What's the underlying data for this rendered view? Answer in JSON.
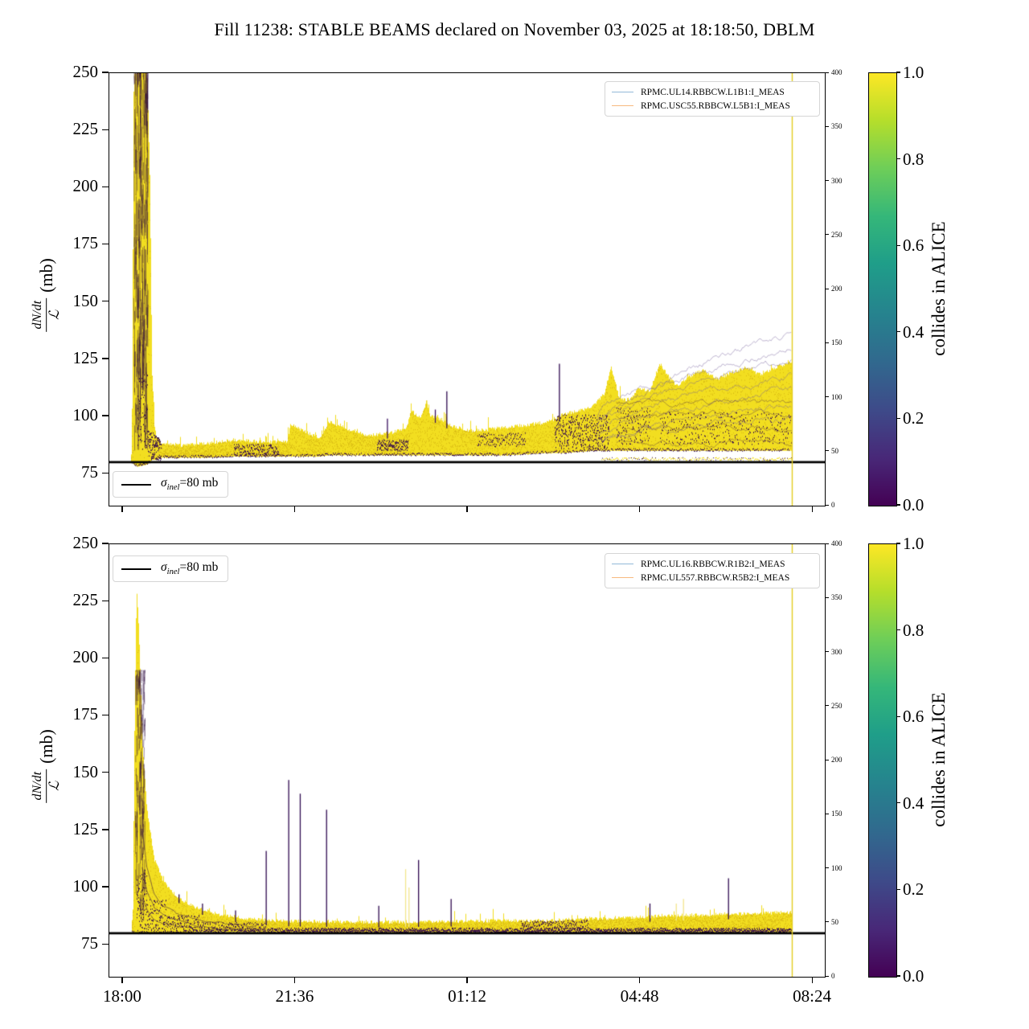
{
  "title": "Fill 11238: STABLE BEAMS declared on November 03, 2025 at 18:18:50, DBLM",
  "colors": {
    "yellow": "#f2de20",
    "yellow_dark": "#d8b914",
    "dark": "#33094f",
    "pale_purple": "rgba(112,92,152,0.5)",
    "vline": "#e3cc20",
    "sigma_line": "#000000"
  },
  "chart_data": [
    {
      "type": "scatter-density",
      "panel": "top",
      "legend": [
        {
          "label": "RPMC.UL14.RBBCW.L1B1:I_MEAS",
          "color": "#92b9d8"
        },
        {
          "label": "RPMC.USC55.RBBCW.L5B1:I_MEAS",
          "color": "#f7b97f"
        }
      ],
      "sigma": {
        "sym": "σ",
        "sub": "inel",
        "rest": "=80 mb",
        "value": 80,
        "plain": "σ_inel=80 mb"
      },
      "ylabel": {
        "num": "dN/dt",
        "den": "ℒ",
        "unit": "(mb)"
      },
      "ylim": [
        61,
        250
      ],
      "yticks": [
        75,
        100,
        125,
        150,
        175,
        200,
        225,
        250
      ],
      "xlim_hours": [
        -0.285,
        14.65
      ],
      "xticks": {
        "hours": [
          0,
          3.6,
          7.2,
          10.8,
          14.4
        ],
        "labels": [
          "18:00",
          "21:36",
          "01:12",
          "04:48",
          "08:24"
        ],
        "labels_visible": false
      },
      "right_axis": {
        "lim": [
          0,
          400
        ],
        "ticks": [
          0,
          50,
          100,
          150,
          200,
          250,
          300,
          350,
          400
        ]
      },
      "colorbar": {
        "label": "collides in ALICE",
        "ticks": [
          "1.0",
          "0.8",
          "0.6",
          "0.4",
          "0.2",
          "0.0"
        ],
        "cmap": "viridis",
        "lim": [
          0,
          1
        ]
      },
      "vline_hour": 13.97,
      "seed": 42,
      "band": [
        [
          0.18,
          80,
          83
        ],
        [
          0.22,
          79,
          249
        ],
        [
          0.3,
          78,
          251
        ],
        [
          0.5,
          79,
          251
        ],
        [
          0.56,
          80,
          200
        ],
        [
          0.6,
          81,
          120
        ],
        [
          0.66,
          81,
          92
        ],
        [
          0.8,
          82,
          88
        ],
        [
          1.2,
          82,
          87
        ],
        [
          1.8,
          82,
          88
        ],
        [
          2.3,
          82.5,
          89.5
        ],
        [
          3.0,
          82.5,
          88.5
        ],
        [
          3.42,
          82.5,
          89
        ],
        [
          3.5,
          82.5,
          96.5
        ],
        [
          3.8,
          82.5,
          93
        ],
        [
          4.1,
          82.5,
          90
        ],
        [
          4.3,
          83,
          97.5
        ],
        [
          4.7,
          83,
          94
        ],
        [
          5.1,
          83,
          91.5
        ],
        [
          5.6,
          83,
          92.5
        ],
        [
          5.92,
          83,
          95
        ],
        [
          6.0,
          83,
          102.5
        ],
        [
          6.2,
          83,
          99
        ],
        [
          6.33,
          83,
          106
        ],
        [
          6.4,
          83,
          100
        ],
        [
          6.7,
          83,
          98
        ],
        [
          6.8,
          83,
          96
        ],
        [
          7.2,
          83,
          93.5
        ],
        [
          7.6,
          83,
          94
        ],
        [
          8.0,
          83,
          95
        ],
        [
          8.4,
          83.5,
          96
        ],
        [
          8.8,
          84,
          97
        ],
        [
          9.05,
          84,
          99
        ],
        [
          9.2,
          84,
          101
        ],
        [
          9.5,
          84.5,
          102
        ],
        [
          9.8,
          85,
          104
        ],
        [
          10.05,
          85,
          110
        ],
        [
          10.18,
          85,
          122
        ],
        [
          10.35,
          85,
          108
        ],
        [
          10.55,
          85,
          106
        ],
        [
          10.75,
          85,
          112
        ],
        [
          11.0,
          85,
          111
        ],
        [
          11.2,
          85,
          123
        ],
        [
          11.35,
          85,
          118
        ],
        [
          11.55,
          85,
          113
        ],
        [
          11.8,
          85,
          117
        ],
        [
          12.1,
          85,
          120
        ],
        [
          12.4,
          85,
          116
        ],
        [
          12.7,
          85,
          119
        ],
        [
          13.0,
          85,
          121
        ],
        [
          13.3,
          85,
          118
        ],
        [
          13.6,
          85,
          121
        ],
        [
          13.97,
          85,
          124
        ]
      ],
      "dark_regions": [
        [
          0.3,
          0.52,
          84,
          120,
          6
        ],
        [
          0.52,
          0.8,
          81,
          94,
          8
        ],
        [
          2.3,
          3.25,
          83,
          88,
          3
        ],
        [
          5.3,
          5.95,
          85,
          90,
          4
        ],
        [
          7.4,
          8.4,
          87,
          93,
          2
        ],
        [
          9.0,
          10.15,
          86,
          101,
          6
        ],
        [
          10.3,
          11.0,
          88,
          104,
          3
        ],
        [
          11.2,
          13.97,
          88,
          102,
          2
        ]
      ],
      "streaks": {
        "t": [
          0.23,
          0.52
        ],
        "y": [
          85,
          250
        ],
        "n": 260,
        "len": [
          3,
          22
        ],
        "color": "rgba(40,5,60,0.45)"
      },
      "spikes": [
        [
          5.52,
          99,
          "#3a1060"
        ],
        [
          6.34,
          107,
          "#e8d41f"
        ],
        [
          6.52,
          103,
          "#3a1060"
        ],
        [
          6.76,
          111,
          "#2f0a50"
        ],
        [
          9.11,
          123,
          "#2f0a50"
        ]
      ],
      "fan": {
        "t": [
          9.9,
          13.97
        ],
        "n": 7,
        "y_start": [
          88,
          100
        ],
        "y_end": [
          100,
          137
        ],
        "wiggle": 2.0,
        "color": "rgba(112,92,152,0.5)"
      },
      "inner_ridges": {
        "t": [
          10.3,
          13.97
        ],
        "n": 4,
        "y": [
          88,
          106
        ],
        "wiggle": 1.6,
        "color": "rgba(55,18,75,0.42)"
      },
      "underband": {
        "t": [
          10.0,
          13.97
        ],
        "y": [
          80.8,
          82.2
        ]
      }
    },
    {
      "type": "scatter-density",
      "panel": "bottom",
      "legend": [
        {
          "label": "RPMC.UL16.RBBCW.R1B2:I_MEAS",
          "color": "#92b9d8"
        },
        {
          "label": "RPMC.UL557.RBBCW.R5B2:I_MEAS",
          "color": "#f7b97f"
        }
      ],
      "sigma": {
        "sym": "σ",
        "sub": "inel",
        "rest": "=80 mb",
        "value": 80,
        "plain": "σ_inel=80 mb"
      },
      "ylabel": {
        "num": "dN/dt",
        "den": "ℒ",
        "unit": "(mb)"
      },
      "ylim": [
        61,
        250
      ],
      "yticks": [
        75,
        100,
        125,
        150,
        175,
        200,
        225,
        250
      ],
      "xlim_hours": [
        -0.285,
        14.65
      ],
      "xticks": {
        "hours": [
          0,
          3.6,
          7.2,
          10.8,
          14.4
        ],
        "labels": [
          "18:00",
          "21:36",
          "01:12",
          "04:48",
          "08:24"
        ],
        "labels_visible": true
      },
      "right_axis": {
        "lim": [
          0,
          400
        ],
        "ticks": [
          0,
          50,
          100,
          150,
          200,
          250,
          300,
          350,
          400
        ]
      },
      "colorbar": {
        "label": "collides in ALICE",
        "ticks": [
          "1.0",
          "0.8",
          "0.6",
          "0.4",
          "0.2",
          "0.0"
        ],
        "cmap": "viridis",
        "lim": [
          0,
          1
        ]
      },
      "vline_hour": 13.97,
      "seed": 1337,
      "band": [
        [
          0.2,
          80.5,
          86
        ],
        [
          0.24,
          80,
          180
        ],
        [
          0.28,
          80,
          231
        ],
        [
          0.33,
          80,
          210
        ],
        [
          0.4,
          80,
          163
        ],
        [
          0.5,
          80,
          133
        ],
        [
          0.65,
          80,
          112
        ],
        [
          0.85,
          80,
          102
        ],
        [
          1.1,
          80,
          96
        ],
        [
          1.5,
          80.5,
          91
        ],
        [
          2.0,
          80.5,
          88
        ],
        [
          2.6,
          80.5,
          86
        ],
        [
          3.5,
          80.5,
          85
        ],
        [
          5.0,
          80.5,
          84.5
        ],
        [
          7.0,
          80.5,
          85
        ],
        [
          9.0,
          80.5,
          85.5
        ],
        [
          10.5,
          80.5,
          86.5
        ],
        [
          11.5,
          80.5,
          87.5
        ],
        [
          12.5,
          80.5,
          88
        ],
        [
          13.97,
          80.5,
          89
        ]
      ],
      "dark_regions": [
        [
          0.28,
          0.5,
          81,
          108,
          7
        ],
        [
          0.5,
          0.9,
          81,
          95,
          4
        ],
        [
          0.9,
          1.6,
          81,
          88,
          3
        ],
        [
          1.6,
          3.0,
          81,
          85,
          2
        ],
        [
          8.3,
          9.7,
          82,
          86,
          2
        ],
        [
          3.0,
          13.97,
          80.5,
          82.5,
          2
        ]
      ],
      "streaks": {
        "t": [
          0.26,
          0.46
        ],
        "y": [
          85,
          195
        ],
        "n": 130,
        "len": [
          3,
          14
        ],
        "color": "rgba(40,5,60,0.45)"
      },
      "decay_lines": [
        {
          "t": [
            0.4,
            2.8
          ],
          "f": 0.55
        },
        {
          "t": [
            0.4,
            3.0
          ],
          "f": 0.35
        },
        {
          "t": [
            0.45,
            3.2
          ],
          "f": 0.2
        }
      ],
      "spikes": [
        [
          1.17,
          97,
          "#2f0a50"
        ],
        [
          1.66,
          93,
          "#2f0a50"
        ],
        [
          2.35,
          90,
          "#2f0a50"
        ],
        [
          2.99,
          116,
          "#2f0a50"
        ],
        [
          3.46,
          147,
          "#2f0a50"
        ],
        [
          3.7,
          141,
          "#2f0a50"
        ],
        [
          4.25,
          134,
          "#2f0a50"
        ],
        [
          5.34,
          92,
          "#2f0a50"
        ],
        [
          5.9,
          108,
          "#f3e68e"
        ],
        [
          5.97,
          100,
          "#f3e68e"
        ],
        [
          6.17,
          112,
          "#2f0a50"
        ],
        [
          6.85,
          95,
          "#2f0a50"
        ],
        [
          11.0,
          93,
          "#2f0a50"
        ],
        [
          11.55,
          93,
          "#f3e68e"
        ],
        [
          11.7,
          95,
          "#f3e68e"
        ],
        [
          12.64,
          104,
          "#2f0a50"
        ]
      ]
    }
  ]
}
